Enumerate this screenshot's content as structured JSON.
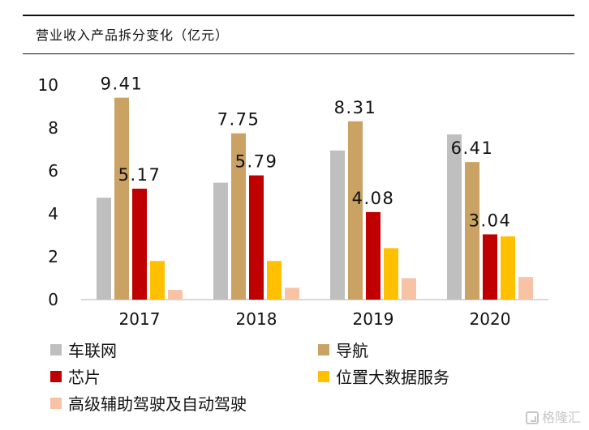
{
  "header": {
    "title": "营业收入产品拆分变化（亿元）"
  },
  "watermark": {
    "label": "格隆汇"
  },
  "colors": {
    "axis": "#d9d9d9",
    "text": "#111111",
    "车联网": "#bfbfbf",
    "导航": "#c9a264",
    "芯片": "#c00000",
    "位置大数据服务": "#ffc000",
    "高级辅助驾驶及自动驾驶": "#f8c3a5"
  },
  "chart_data": {
    "type": "bar",
    "title": "营业收入产品拆分变化（亿元）",
    "xlabel": "",
    "ylabel": "",
    "categories": [
      "2017",
      "2018",
      "2019",
      "2020"
    ],
    "ylim": [
      0,
      10
    ],
    "yticks": [
      0,
      2,
      4,
      6,
      8,
      10
    ],
    "grid": false,
    "legend_position": "bottom",
    "series": [
      {
        "name": "车联网",
        "values": [
          4.75,
          5.45,
          6.95,
          7.7
        ],
        "color": "#bfbfbf",
        "labels": [
          "",
          "",
          "",
          ""
        ]
      },
      {
        "name": "导航",
        "values": [
          9.41,
          7.75,
          8.31,
          6.41
        ],
        "color": "#c9a264",
        "labels": [
          "9.41",
          "7.75",
          "8.31",
          "6.41"
        ]
      },
      {
        "name": "芯片",
        "values": [
          5.17,
          5.79,
          4.08,
          3.04
        ],
        "color": "#c00000",
        "labels": [
          "5.17",
          "5.79",
          "4.08",
          "3.04"
        ]
      },
      {
        "name": "位置大数据服务",
        "values": [
          1.8,
          1.8,
          2.4,
          2.95
        ],
        "color": "#ffc000",
        "labels": [
          "",
          "",
          "",
          ""
        ]
      },
      {
        "name": "高级辅助驾驶及自动驾驶",
        "values": [
          0.45,
          0.55,
          1.0,
          1.05
        ],
        "color": "#f8c3a5",
        "labels": [
          "",
          "",
          "",
          ""
        ]
      }
    ]
  }
}
